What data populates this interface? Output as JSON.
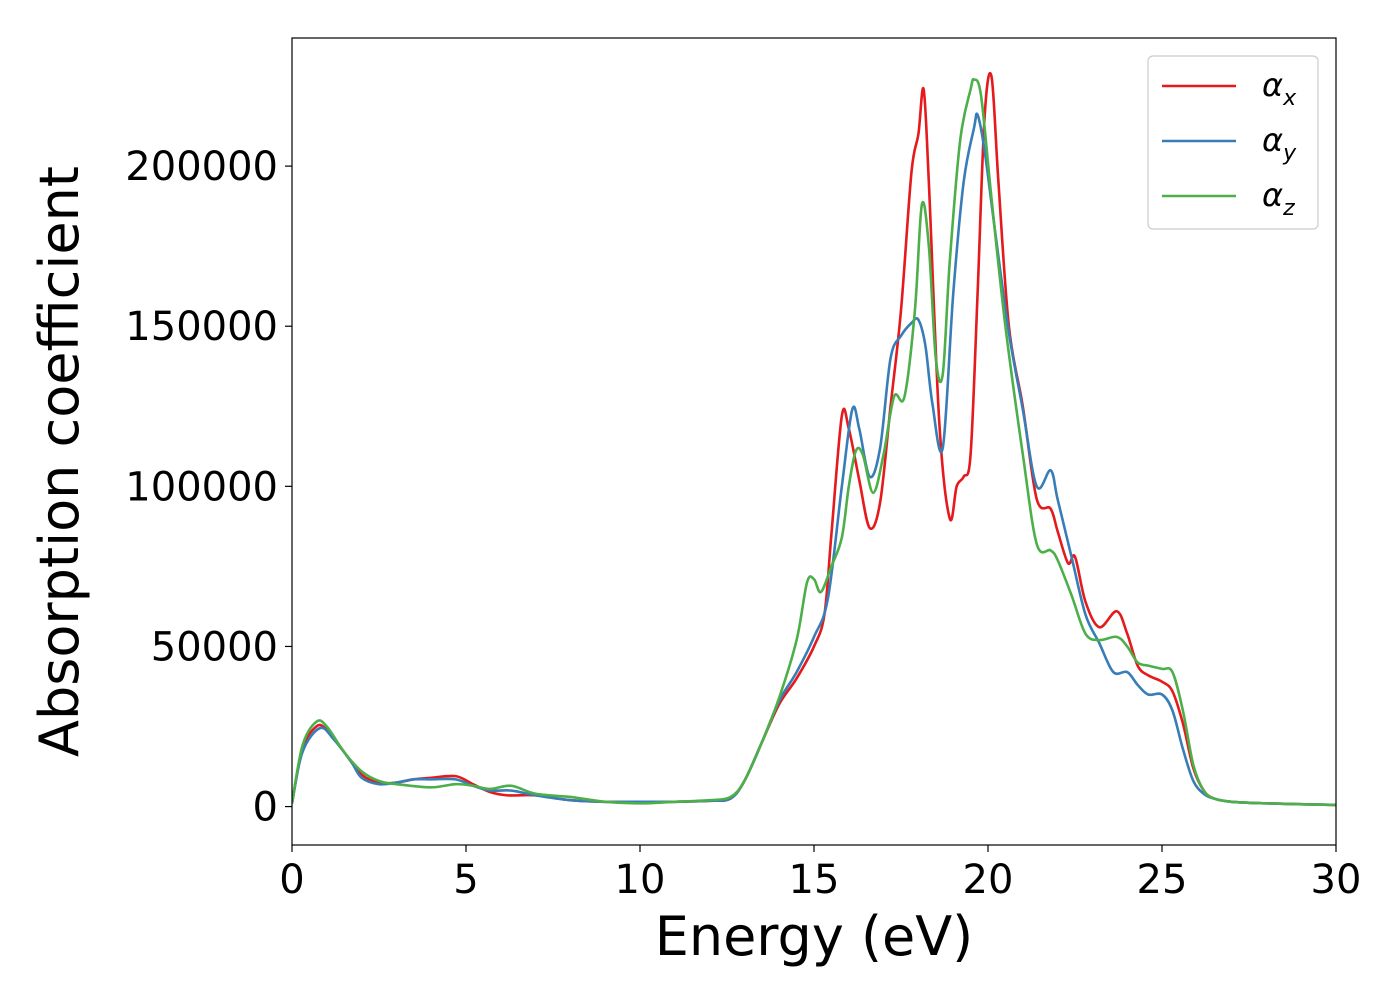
{
  "chart_data": {
    "type": "line",
    "xlabel": "Energy (eV)",
    "ylabel": "Absorption coefficient",
    "xlim": [
      0,
      30
    ],
    "ylim": [
      -12000,
      240000
    ],
    "xticks": [
      0,
      5,
      10,
      15,
      20,
      25,
      30
    ],
    "yticks": [
      0,
      50000,
      100000,
      150000,
      200000
    ],
    "xtick_labels": [
      "0",
      "5",
      "10",
      "15",
      "20",
      "25",
      "30"
    ],
    "ytick_labels": [
      "0",
      "50000",
      "100000",
      "150000",
      "200000"
    ],
    "grid": false,
    "legend_position": "top-right",
    "series": [
      {
        "name": "α",
        "subscript": "x",
        "color": "#e41a1c",
        "x": [
          0,
          0.3,
          0.7,
          1.0,
          1.5,
          2.0,
          2.5,
          3.0,
          3.5,
          4.0,
          4.7,
          5.2,
          5.7,
          6.2,
          7.0,
          8.0,
          9.0,
          10.0,
          11.0,
          12.0,
          12.6,
          13.0,
          13.5,
          14.0,
          14.5,
          15.0,
          15.3,
          15.5,
          15.8,
          16.0,
          16.3,
          16.6,
          16.9,
          17.2,
          17.5,
          17.8,
          18.0,
          18.15,
          18.3,
          18.6,
          18.9,
          19.1,
          19.3,
          19.5,
          19.7,
          19.9,
          20.1,
          20.3,
          20.6,
          21.0,
          21.4,
          21.8,
          22.0,
          22.3,
          22.5,
          22.8,
          23.2,
          23.7,
          24.0,
          24.3,
          24.6,
          25.0,
          25.3,
          25.6,
          25.9,
          26.2,
          26.5,
          27.0,
          28.0,
          30.0
        ],
        "y": [
          1000,
          18000,
          25000,
          24000,
          17000,
          10000,
          7500,
          7500,
          8500,
          9000,
          9500,
          7000,
          4500,
          3500,
          3500,
          2000,
          1500,
          1500,
          1500,
          1800,
          2500,
          8000,
          20000,
          32000,
          40000,
          50000,
          60000,
          85000,
          122000,
          118000,
          102000,
          87000,
          95000,
          125000,
          155000,
          198000,
          210000,
          224000,
          195000,
          120000,
          90000,
          100000,
          103000,
          110000,
          160000,
          215000,
          228000,
          195000,
          150000,
          125000,
          96000,
          93000,
          86000,
          76000,
          78000,
          64000,
          56000,
          61000,
          54000,
          44000,
          41000,
          39000,
          36000,
          26000,
          12000,
          5000,
          2500,
          1500,
          1000,
          500
        ]
      },
      {
        "name": "α",
        "subscript": "y",
        "color": "#377eb8",
        "x": [
          0,
          0.3,
          0.8,
          1.2,
          1.7,
          2.0,
          2.5,
          3.0,
          3.5,
          4.0,
          4.7,
          5.2,
          5.7,
          6.3,
          7.0,
          8.0,
          9.0,
          10.0,
          11.0,
          12.0,
          12.6,
          13.0,
          13.5,
          14.0,
          14.5,
          15.0,
          15.4,
          15.8,
          16.1,
          16.3,
          16.6,
          16.9,
          17.2,
          17.5,
          17.8,
          18.0,
          18.2,
          18.4,
          18.7,
          19.0,
          19.3,
          19.6,
          19.7,
          19.9,
          20.2,
          20.6,
          21.0,
          21.4,
          21.8,
          22.0,
          22.4,
          22.8,
          23.2,
          23.6,
          24.0,
          24.3,
          24.6,
          25.0,
          25.3,
          25.6,
          25.9,
          26.2,
          26.5,
          27.0,
          28.0,
          30.0
        ],
        "y": [
          1000,
          17000,
          24500,
          21000,
          14000,
          9000,
          7000,
          7500,
          8500,
          8500,
          8500,
          6500,
          5000,
          5000,
          3500,
          2000,
          1500,
          1500,
          1500,
          1800,
          2500,
          8000,
          20000,
          33000,
          42000,
          53000,
          65000,
          100000,
          124000,
          118000,
          103000,
          112000,
          140000,
          147000,
          151000,
          152000,
          144000,
          126000,
          112000,
          160000,
          195000,
          212000,
          216000,
          205000,
          180000,
          148000,
          124000,
          100000,
          105000,
          96000,
          78000,
          60000,
          51000,
          42000,
          42000,
          38000,
          35000,
          35000,
          30000,
          18000,
          8000,
          4000,
          2500,
          1500,
          1000,
          500
        ]
      },
      {
        "name": "α",
        "subscript": "z",
        "color": "#4daf4a",
        "x": [
          0,
          0.3,
          0.7,
          1.0,
          1.5,
          2.0,
          2.5,
          3.0,
          4.0,
          4.7,
          5.2,
          5.7,
          6.3,
          7.0,
          8.0,
          9.0,
          10.0,
          11.0,
          12.0,
          12.6,
          13.0,
          13.5,
          14.0,
          14.5,
          14.8,
          15.0,
          15.2,
          15.5,
          15.8,
          16.0,
          16.2,
          16.4,
          16.7,
          17.0,
          17.3,
          17.6,
          17.9,
          18.1,
          18.3,
          18.5,
          18.7,
          18.9,
          19.2,
          19.5,
          19.6,
          19.8,
          20.1,
          20.5,
          21.0,
          21.4,
          21.8,
          22.0,
          22.4,
          22.8,
          23.2,
          23.7,
          24.0,
          24.3,
          24.6,
          25.0,
          25.3,
          25.6,
          25.9,
          26.2,
          26.5,
          27.0,
          28.0,
          30.0
        ],
        "y": [
          1000,
          19000,
          26500,
          25000,
          17000,
          11000,
          8000,
          7000,
          6000,
          7000,
          6500,
          5500,
          6500,
          4000,
          3000,
          1500,
          1000,
          1500,
          2000,
          3000,
          8000,
          20000,
          34000,
          52000,
          70000,
          71000,
          67000,
          75000,
          84000,
          100000,
          111000,
          110000,
          98000,
          110000,
          128000,
          128000,
          155000,
          188000,
          175000,
          140000,
          135000,
          170000,
          208000,
          224000,
          227000,
          222000,
          190000,
          150000,
          110000,
          82000,
          80000,
          77000,
          66000,
          54000,
          52000,
          53000,
          50000,
          45000,
          44000,
          43000,
          42000,
          30000,
          13000,
          5000,
          2500,
          1500,
          1000,
          500
        ]
      }
    ]
  }
}
